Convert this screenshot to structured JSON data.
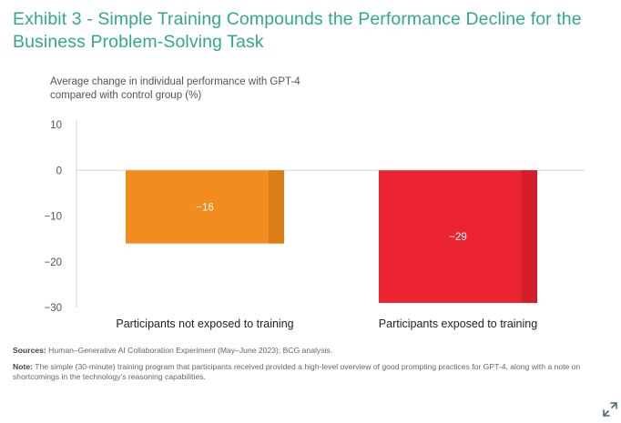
{
  "title": "Exhibit 3 - Simple Training Compounds the Performance Decline for the Business Problem-Solving Task",
  "chart_data": {
    "type": "bar",
    "title": "Exhibit 3 - Simple Training Compounds the Performance Decline for the Business Problem-Solving Task",
    "ylabel": "Average change in individual performance with GPT-4 compared with control group (%)",
    "xlabel": "",
    "categories": [
      "Participants not exposed to training",
      "Participants exposed to training"
    ],
    "values": [
      -16,
      -29
    ],
    "data_labels": [
      "−16",
      "−29"
    ],
    "ylim": [
      -30,
      10
    ],
    "yticks": [
      10,
      0,
      -10,
      -20,
      -30
    ],
    "ytick_labels": [
      "10",
      "0",
      "−10",
      "−20",
      "−30"
    ],
    "grid": false,
    "colors": [
      "#f28c1f",
      "#ec2330"
    ],
    "shade_colors": [
      "#d97d14",
      "#d41f2b"
    ]
  },
  "footnotes": {
    "sources_label": "Sources:",
    "sources_text": "Human–Generative AI Collaboration Experiment (May–June 2023); BCG analysis.",
    "note_label": "Note:",
    "note_text": "The simple (30-minute) training program that participants received provided a high-level overview of good prompting practices for GPT-4, along with a note on shortcomings in the technology’s reasoning capabilities."
  },
  "icons": {
    "expand": "expand-icon"
  }
}
